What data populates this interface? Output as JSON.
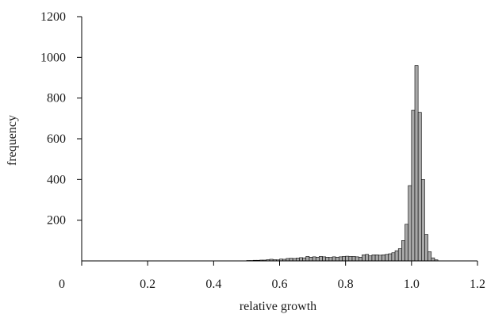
{
  "chart_data": {
    "type": "bar",
    "xlabel": "relative growth",
    "ylabel": "frequency",
    "xlim": [
      0,
      1.2
    ],
    "ylim": [
      0,
      1200
    ],
    "x_ticks": [
      0,
      0.2,
      0.4,
      0.6,
      0.8,
      1.0,
      1.2
    ],
    "x_tick_labels": [
      "0",
      "0.2",
      "0.4",
      "0.6",
      "0.8",
      "1.0",
      "1.2"
    ],
    "y_ticks": [
      200,
      400,
      600,
      800,
      1000,
      1200
    ],
    "y_tick_labels": [
      "200",
      "400",
      "600",
      "800",
      "1000",
      "1200"
    ],
    "bin_width": 0.01,
    "bin_starts": [
      0.5,
      0.51,
      0.52,
      0.53,
      0.54,
      0.55,
      0.56,
      0.57,
      0.58,
      0.59,
      0.6,
      0.61,
      0.62,
      0.63,
      0.64,
      0.65,
      0.66,
      0.67,
      0.68,
      0.69,
      0.7,
      0.71,
      0.72,
      0.73,
      0.74,
      0.75,
      0.76,
      0.77,
      0.78,
      0.79,
      0.8,
      0.81,
      0.82,
      0.83,
      0.84,
      0.85,
      0.86,
      0.87,
      0.88,
      0.89,
      0.9,
      0.91,
      0.92,
      0.93,
      0.94,
      0.95,
      0.96,
      0.97,
      0.98,
      0.99,
      1.0,
      1.01,
      1.02,
      1.03,
      1.04,
      1.05,
      1.06,
      1.07
    ],
    "values": [
      2,
      2,
      3,
      3,
      4,
      4,
      6,
      8,
      6,
      5,
      9,
      8,
      12,
      13,
      12,
      14,
      16,
      15,
      22,
      18,
      20,
      18,
      22,
      20,
      18,
      17,
      20,
      18,
      20,
      22,
      23,
      22,
      22,
      20,
      18,
      30,
      32,
      25,
      30,
      30,
      28,
      30,
      32,
      35,
      40,
      50,
      60,
      100,
      180,
      370,
      740,
      960,
      730,
      400,
      130,
      45,
      15,
      5
    ]
  }
}
